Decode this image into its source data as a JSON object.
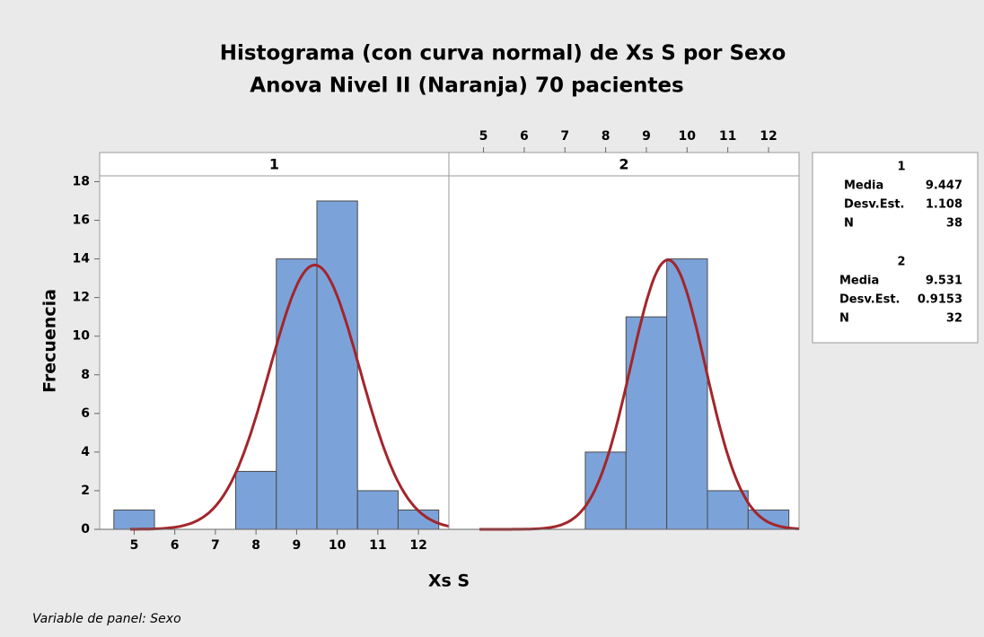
{
  "chart_data": {
    "type": "histogram",
    "title": "Histograma (con curva normal) de Xs S por Sexo",
    "subtitle": "Anova Nivel II (Naranja) 70 pacientes",
    "xlabel": "Xs S",
    "ylabel": "Frecuencia",
    "footnote": "Variable de panel: Sexo",
    "color": "#7ba3d9",
    "curve_color": "#a3252b",
    "xlim": [
      4.15,
      12.75
    ],
    "xticks": [
      5,
      6,
      7,
      8,
      9,
      10,
      11,
      12
    ],
    "ylim": [
      0,
      18.3
    ],
    "yticks": [
      0,
      2,
      4,
      6,
      8,
      10,
      12,
      14,
      16,
      18
    ],
    "bins": [
      4.5,
      5.5,
      6.5,
      7.5,
      8.5,
      9.5,
      10.5,
      11.5,
      12.5
    ],
    "stat_labels": [
      "Media",
      "Desv.Est.",
      "N"
    ],
    "panels": [
      {
        "name": "1",
        "values": [
          1,
          0,
          0,
          3,
          14,
          17,
          2,
          1
        ],
        "mean": 9.447,
        "sd": 1.108,
        "n": 38
      },
      {
        "name": "2",
        "values": [
          0,
          0,
          0,
          4,
          11,
          14,
          2,
          1
        ],
        "mean": 9.531,
        "sd": 0.9153,
        "n": 32
      }
    ]
  }
}
